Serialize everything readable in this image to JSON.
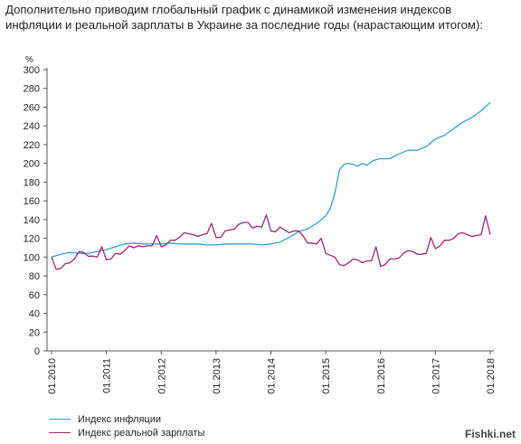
{
  "intro": {
    "line1": "Дополнительно приводим глобальный график с динамикой изменения индексов",
    "line2": "инфляции и реальной зарплаты в Украине за  последние годы (нарастающим итогом):"
  },
  "watermark": "Fishki.net",
  "colors": {
    "inflation": "#2aa3cf",
    "wage": "#a0246e",
    "axis": "#555555"
  },
  "chart_data": {
    "type": "line",
    "ylabel": "%",
    "ylim": [
      0,
      300
    ],
    "yticks": [
      0,
      20,
      40,
      60,
      80,
      100,
      120,
      140,
      160,
      180,
      200,
      220,
      240,
      260,
      280,
      300
    ],
    "xlim": [
      "01.2010",
      "01.2018"
    ],
    "xticks": [
      "01.2010",
      "01.2011",
      "01.2012",
      "01.2013",
      "01.2014",
      "01.2015",
      "01.2016",
      "01.2017",
      "01.2018"
    ],
    "legend_position": "bottom-left",
    "series": [
      {
        "name": "Индекс инфляции",
        "color": "#2aa3cf",
        "points": [
          [
            "01.2010",
            100
          ],
          [
            "03.2010",
            103
          ],
          [
            "05.2010",
            105
          ],
          [
            "07.2010",
            104
          ],
          [
            "09.2010",
            104
          ],
          [
            "11.2010",
            106
          ],
          [
            "01.2011",
            108
          ],
          [
            "03.2011",
            111
          ],
          [
            "05.2011",
            114
          ],
          [
            "07.2011",
            115
          ],
          [
            "09.2011",
            114
          ],
          [
            "11.2011",
            114
          ],
          [
            "01.2012",
            114
          ],
          [
            "03.2012",
            115
          ],
          [
            "05.2012",
            114
          ],
          [
            "07.2012",
            114
          ],
          [
            "09.2012",
            114
          ],
          [
            "11.2012",
            113
          ],
          [
            "01.2013",
            113
          ],
          [
            "03.2013",
            114
          ],
          [
            "05.2013",
            114
          ],
          [
            "07.2013",
            114
          ],
          [
            "09.2013",
            114
          ],
          [
            "11.2013",
            113
          ],
          [
            "01.2014",
            114
          ],
          [
            "03.2014",
            116
          ],
          [
            "05.2014",
            121
          ],
          [
            "07.2014",
            127
          ],
          [
            "09.2014",
            130
          ],
          [
            "11.2014",
            136
          ],
          [
            "12.2014",
            140
          ],
          [
            "01.2015",
            144
          ],
          [
            "02.2015",
            152
          ],
          [
            "03.2015",
            168
          ],
          [
            "04.2015",
            193
          ],
          [
            "05.2015",
            199
          ],
          [
            "06.2015",
            200
          ],
          [
            "07.2015",
            199
          ],
          [
            "08.2015",
            197
          ],
          [
            "09.2015",
            200
          ],
          [
            "10.2015",
            198
          ],
          [
            "11.2015",
            202
          ],
          [
            "12.2015",
            204
          ],
          [
            "01.2016",
            205
          ],
          [
            "03.2016",
            205
          ],
          [
            "05.2016",
            210
          ],
          [
            "07.2016",
            214
          ],
          [
            "09.2016",
            214
          ],
          [
            "11.2016",
            218
          ],
          [
            "01.2017",
            226
          ],
          [
            "03.2017",
            230
          ],
          [
            "05.2017",
            237
          ],
          [
            "07.2017",
            244
          ],
          [
            "09.2017",
            249
          ],
          [
            "11.2017",
            256
          ],
          [
            "01.2018",
            265
          ]
        ]
      },
      {
        "name": "Индекс реальной зарплаты",
        "color": "#a0246e",
        "points": [
          [
            "01.2010",
            100
          ],
          [
            "02.2010",
            87
          ],
          [
            "03.2010",
            88
          ],
          [
            "04.2010",
            93
          ],
          [
            "05.2010",
            94
          ],
          [
            "06.2010",
            98
          ],
          [
            "07.2010",
            106
          ],
          [
            "08.2010",
            105
          ],
          [
            "09.2010",
            101
          ],
          [
            "10.2010",
            101
          ],
          [
            "11.2010",
            100
          ],
          [
            "12.2010",
            111
          ],
          [
            "01.2011",
            97
          ],
          [
            "02.2011",
            98
          ],
          [
            "03.2011",
            104
          ],
          [
            "04.2011",
            103
          ],
          [
            "05.2011",
            107
          ],
          [
            "06.2011",
            112
          ],
          [
            "07.2011",
            110
          ],
          [
            "08.2011",
            112
          ],
          [
            "09.2011",
            111
          ],
          [
            "10.2011",
            112
          ],
          [
            "11.2011",
            112
          ],
          [
            "12.2011",
            123
          ],
          [
            "01.2012",
            111
          ],
          [
            "02.2012",
            113
          ],
          [
            "03.2012",
            118
          ],
          [
            "04.2012",
            118
          ],
          [
            "05.2012",
            121
          ],
          [
            "06.2012",
            126
          ],
          [
            "07.2012",
            125
          ],
          [
            "08.2012",
            124
          ],
          [
            "09.2012",
            122
          ],
          [
            "10.2012",
            124
          ],
          [
            "11.2012",
            125
          ],
          [
            "12.2012",
            136
          ],
          [
            "01.2013",
            121
          ],
          [
            "02.2013",
            121
          ],
          [
            "03.2013",
            128
          ],
          [
            "04.2013",
            129
          ],
          [
            "05.2013",
            130
          ],
          [
            "06.2013",
            135
          ],
          [
            "07.2013",
            137
          ],
          [
            "08.2013",
            137
          ],
          [
            "09.2013",
            131
          ],
          [
            "10.2013",
            133
          ],
          [
            "11.2013",
            132
          ],
          [
            "12.2013",
            145
          ],
          [
            "01.2014",
            128
          ],
          [
            "02.2014",
            127
          ],
          [
            "03.2014",
            132
          ],
          [
            "04.2014",
            129
          ],
          [
            "05.2014",
            126
          ],
          [
            "06.2014",
            128
          ],
          [
            "07.2014",
            128
          ],
          [
            "08.2014",
            123
          ],
          [
            "09.2014",
            115
          ],
          [
            "10.2014",
            115
          ],
          [
            "11.2014",
            114
          ],
          [
            "12.2014",
            120
          ],
          [
            "01.2015",
            104
          ],
          [
            "02.2015",
            102
          ],
          [
            "03.2015",
            100
          ],
          [
            "04.2015",
            92
          ],
          [
            "05.2015",
            91
          ],
          [
            "06.2015",
            94
          ],
          [
            "07.2015",
            98
          ],
          [
            "08.2015",
            97
          ],
          [
            "09.2015",
            94
          ],
          [
            "10.2015",
            96
          ],
          [
            "11.2015",
            96
          ],
          [
            "12.2015",
            111
          ],
          [
            "01.2016",
            90
          ],
          [
            "02.2016",
            92
          ],
          [
            "03.2016",
            98
          ],
          [
            "04.2016",
            98
          ],
          [
            "05.2016",
            99
          ],
          [
            "06.2016",
            104
          ],
          [
            "07.2016",
            107
          ],
          [
            "08.2016",
            106
          ],
          [
            "09.2016",
            103
          ],
          [
            "10.2016",
            103
          ],
          [
            "11.2016",
            104
          ],
          [
            "12.2016",
            121
          ],
          [
            "01.2017",
            109
          ],
          [
            "02.2017",
            112
          ],
          [
            "03.2017",
            118
          ],
          [
            "04.2017",
            118
          ],
          [
            "05.2017",
            120
          ],
          [
            "06.2017",
            125
          ],
          [
            "07.2017",
            126
          ],
          [
            "08.2017",
            124
          ],
          [
            "09.2017",
            122
          ],
          [
            "10.2017",
            123
          ],
          [
            "11.2017",
            124
          ],
          [
            "12.2017",
            144
          ],
          [
            "01.2018",
            124
          ]
        ]
      }
    ]
  }
}
